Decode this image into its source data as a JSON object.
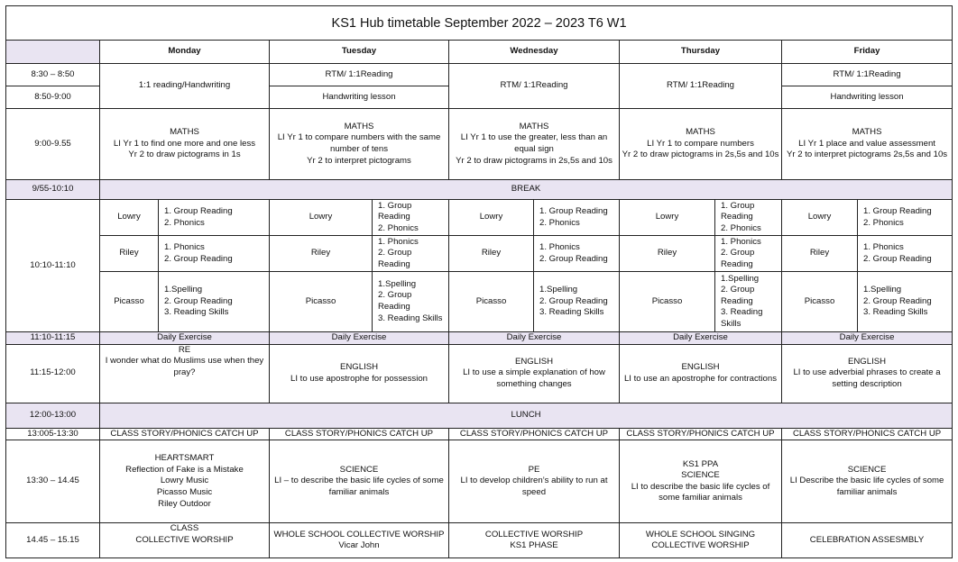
{
  "title": "KS1 Hub timetable September 2022 – 2023 T6 W1",
  "days": [
    "Monday",
    "Tuesday",
    "Wednesday",
    "Thursday",
    "Friday"
  ],
  "colors": {
    "shade": "#e9e4f2",
    "border": "#222222"
  },
  "rows": [
    {
      "h": 25,
      "time": "8:30 – 8:50",
      "cells": [
        {
          "text": [
            "1:1 reading/Handwriting"
          ],
          "rowspan": 2
        },
        {
          "text": [
            "RTM/ 1:1Reading"
          ]
        },
        {
          "text": [
            "RTM/ 1:1Reading"
          ],
          "rowspan": 2
        },
        {
          "text": [
            "RTM/ 1:1Reading"
          ],
          "rowspan": 2
        },
        {
          "text": [
            "RTM/ 1:1Reading"
          ]
        }
      ]
    },
    {
      "h": 25,
      "time": "8:50-9:00",
      "cells": [
        {
          "text": [
            "Handwriting lesson"
          ]
        },
        {
          "text": [
            "Handwriting lesson"
          ]
        }
      ]
    },
    {
      "h": 79,
      "time": "9:00-9.55",
      "cells": [
        {
          "text": [
            "MATHS",
            "LI Yr 1 to find one more and one less",
            "Yr 2 to draw pictograms in 1s"
          ]
        },
        {
          "text": [
            "MATHS",
            "LI Yr 1 to compare numbers with the same number of tens",
            "Yr 2 to interpret pictograms"
          ]
        },
        {
          "text": [
            "MATHS",
            "LI Yr 1 to use the greater, less than an equal sign",
            "Yr 2 to draw pictograms in 2s,5s and 10s"
          ]
        },
        {
          "text": [
            "MATHS",
            "LI Yr 1 to compare numbers",
            "Yr 2 to draw pictograms in 2s,5s and 10s"
          ]
        },
        {
          "text": [
            "MATHS",
            "LI Yr 1 place and value assessment",
            "Yr 2 to interpret pictograms 2s,5s and 10s"
          ]
        }
      ]
    },
    {
      "h": 22,
      "time": "9/55-10:10",
      "shaded": true,
      "cells": [
        {
          "text": [
            "BREAK"
          ],
          "colspan": 10
        }
      ]
    },
    {
      "h": 40,
      "time": "10:10-11:10",
      "timeRowspan": 3,
      "groups": true,
      "cells": [
        {
          "group": "Lowry",
          "text": [
            "1. Group Reading",
            "2. Phonics"
          ]
        },
        {
          "group": "Lowry",
          "text": [
            "1. Group",
            "Reading",
            "2. Phonics"
          ]
        },
        {
          "group": "Lowry",
          "text": [
            "1. Group Reading",
            "2. Phonics"
          ]
        },
        {
          "group": "Lowry",
          "text": [
            "1. Group",
            "Reading",
            "2. Phonics"
          ]
        },
        {
          "group": "Lowry",
          "text": [
            "1. Group Reading",
            "2. Phonics"
          ]
        }
      ]
    },
    {
      "h": 40,
      "noTime": true,
      "groups": true,
      "cells": [
        {
          "group": "Riley",
          "text": [
            "1. Phonics",
            "2. Group Reading"
          ]
        },
        {
          "group": "Riley",
          "text": [
            "1. Phonics",
            "2. Group",
            "Reading"
          ]
        },
        {
          "group": "Riley",
          "text": [
            "1. Phonics",
            "2. Group Reading"
          ]
        },
        {
          "group": "Riley",
          "text": [
            "1. Phonics",
            "2. Group",
            "Reading"
          ]
        },
        {
          "group": "Riley",
          "text": [
            "1. Phonics",
            "2. Group Reading"
          ]
        }
      ]
    },
    {
      "h": 67,
      "noTime": true,
      "groups": true,
      "cells": [
        {
          "group": "Picasso",
          "text": [
            "1.Spelling",
            "2. Group Reading",
            "3. Reading Skills"
          ]
        },
        {
          "group": "Picasso",
          "text": [
            "1.Spelling",
            "2. Group",
            "Reading",
            "3. Reading Skills"
          ]
        },
        {
          "group": "Picasso",
          "text": [
            "1.Spelling",
            "2. Group Reading",
            "3. Reading Skills"
          ]
        },
        {
          "group": "Picasso",
          "text": [
            "1.Spelling",
            "2. Group",
            "Reading",
            "    3. Reading",
            "        Skills"
          ]
        },
        {
          "group": "Picasso",
          "text": [
            "1.Spelling",
            "2. Group Reading",
            "3. Reading Skills"
          ]
        }
      ]
    },
    {
      "h": 13,
      "time": "11:10-11:15",
      "shaded": true,
      "cells": [
        {
          "text": [
            "Daily Exercise"
          ]
        },
        {
          "text": [
            "Daily Exercise"
          ]
        },
        {
          "text": [
            "Daily Exercise"
          ]
        },
        {
          "text": [
            "Daily Exercise"
          ]
        },
        {
          "text": [
            "Daily Exercise"
          ]
        }
      ]
    },
    {
      "h": 65,
      "time": "11:15-12:00",
      "cells": [
        {
          "text": [
            "RE",
            "I wonder what do Muslims use when they pray?"
          ],
          "top": true
        },
        {
          "text": [
            "ENGLISH",
            "LI to use apostrophe for possession"
          ]
        },
        {
          "text": [
            "ENGLISH",
            "LI to use a simple explanation of how something changes"
          ]
        },
        {
          "text": [
            "ENGLISH",
            "LI to use an apostrophe for contractions"
          ]
        },
        {
          "text": [
            "ENGLISH",
            "LI to use adverbial phrases to create a setting description"
          ]
        }
      ]
    },
    {
      "h": 28,
      "time": "12:00-13:00",
      "shaded": true,
      "cells": [
        {
          "text": [
            "LUNCH"
          ],
          "colspan": 10
        }
      ]
    },
    {
      "h": 13,
      "time": "13:005-13:30",
      "cells": [
        {
          "text": [
            "CLASS STORY/PHONICS CATCH UP"
          ]
        },
        {
          "text": [
            "CLASS STORY/PHONICS CATCH UP"
          ]
        },
        {
          "text": [
            "CLASS STORY/PHONICS CATCH UP"
          ]
        },
        {
          "text": [
            "CLASS STORY/PHONICS CATCH UP"
          ]
        },
        {
          "text": [
            "CLASS STORY/PHONICS CATCH UP"
          ]
        }
      ]
    },
    {
      "h": 92,
      "time": "13:30 – 14.45",
      "cells": [
        {
          "text": [
            "HEARTSMART",
            "Reflection of Fake is a Mistake",
            "Lowry Music",
            "Picasso Music",
            "Riley Outdoor"
          ]
        },
        {
          "text": [
            "SCIENCE",
            "LI – to describe the basic life cycles of some familiar animals"
          ]
        },
        {
          "text": [
            "PE",
            "LI to develop children’s ability to run at speed"
          ]
        },
        {
          "text": [
            "KS1 PPA",
            "SCIENCE",
            "LI to describe the basic life cycles of some familiar animals"
          ]
        },
        {
          "text": [
            "SCIENCE",
            "LI  Describe the basic life cycles of some familiar animals"
          ]
        }
      ]
    },
    {
      "h": 39,
      "time": "14.45 – 15.15",
      "cells": [
        {
          "text": [
            "CLASS",
            "COLLECTIVE WORSHIP"
          ],
          "top": true
        },
        {
          "text": [
            "WHOLE SCHOOL COLLECTIVE WORSHIP",
            "Vicar John"
          ]
        },
        {
          "text": [
            "COLLECTIVE WORSHIP",
            "KS1 PHASE"
          ]
        },
        {
          "text": [
            "WHOLE SCHOOL SINGING",
            "COLLECTIVE WORSHIP"
          ]
        },
        {
          "text": [
            "CELEBRATION ASSESMBLY"
          ]
        }
      ]
    }
  ]
}
